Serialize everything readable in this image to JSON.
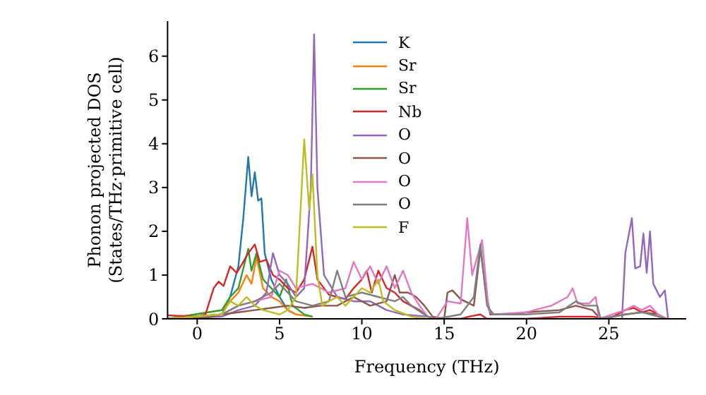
{
  "chart_data": {
    "type": "line",
    "xlabel": "Frequency (THz)",
    "ylabel": "Phonon projected DOS\n(States/THz·primitive cell)",
    "xlim": [
      -1.8,
      29.7
    ],
    "ylim": [
      0,
      6.8
    ],
    "xticks": [
      0,
      5,
      10,
      15,
      20,
      25
    ],
    "yticks": [
      0,
      1,
      2,
      3,
      4,
      5,
      6
    ],
    "grid": false,
    "legend": "top",
    "marker": "none",
    "line_style": "solid",
    "series": [
      {
        "name": "K",
        "color": "#1f77b4",
        "x": [
          -1.8,
          1.5,
          2,
          2.5,
          2.8,
          3.1,
          3.3,
          3.5,
          3.7,
          3.9,
          4.1,
          4.5,
          5,
          5.5,
          6
        ],
        "values": [
          0,
          0.1,
          0.5,
          1.2,
          2.3,
          3.7,
          2.8,
          3.35,
          2.7,
          2.75,
          1.5,
          0.9,
          0.5,
          0.2,
          0.1
        ]
      },
      {
        "name": "Sr",
        "color": "#ff7f0e",
        "x": [
          -1.8,
          1.5,
          2,
          2.5,
          3,
          3.3,
          3.6,
          4,
          4.5,
          5,
          5.5,
          6,
          7
        ],
        "values": [
          0,
          0.2,
          0.4,
          0.6,
          1.0,
          0.8,
          1.4,
          0.7,
          0.5,
          0.4,
          0.2,
          0.1,
          0.05
        ]
      },
      {
        "name": "Sr",
        "color": "#2ca02c",
        "x": [
          -1.8,
          1.5,
          2,
          2.5,
          3.1,
          3.3,
          3.6,
          4,
          4.5,
          5,
          5.4,
          5.8,
          6.5,
          7
        ],
        "values": [
          0,
          0.2,
          0.5,
          0.7,
          1.6,
          1.1,
          1.5,
          0.9,
          0.7,
          0.5,
          0.9,
          0.3,
          0.1,
          0.05
        ]
      },
      {
        "name": "Nb",
        "color": "#d62728",
        "x": [
          -1.8,
          0,
          0.5,
          1,
          1.3,
          1.6,
          2,
          2.4,
          2.8,
          3.1,
          3.5,
          3.8,
          4.2,
          4.6,
          5,
          5.5,
          6,
          6.5,
          7,
          7.3,
          8,
          8.5,
          9,
          9.5,
          10,
          10.3,
          10.6,
          11,
          11.5,
          12,
          12.5,
          13,
          13.5,
          14,
          14.5,
          16,
          16.5,
          17.2,
          17.6,
          20,
          22,
          24,
          25,
          26,
          26.5,
          27,
          27.5,
          28,
          28.5
        ],
        "values": [
          0.08,
          0.05,
          0.1,
          0.7,
          0.85,
          0.75,
          1.2,
          1.05,
          1.3,
          1.5,
          1.7,
          1.3,
          1.35,
          1.0,
          0.9,
          0.7,
          0.6,
          0.9,
          1.65,
          0.9,
          0.55,
          0.5,
          0.45,
          0.7,
          0.9,
          1.1,
          0.6,
          1.1,
          0.7,
          0.6,
          0.4,
          0.3,
          0.2,
          0.05,
          0,
          0,
          0.05,
          0.1,
          0,
          0,
          0.05,
          0.05,
          0,
          0.2,
          0.25,
          0.15,
          0.2,
          0.1,
          0
        ]
      },
      {
        "name": "O",
        "color": "#9467bd",
        "x": [
          -1.8,
          1.5,
          2.5,
          3.5,
          4.2,
          4.6,
          5,
          5.5,
          6,
          6.5,
          6.9,
          7.1,
          7.3,
          7.7,
          8.5,
          9.5,
          10.5,
          11.5,
          12.5,
          14,
          14.5,
          25.8,
          26,
          26.4,
          26.6,
          26.9,
          27.1,
          27.3,
          27.5,
          27.7,
          28.1,
          28.4,
          28.6
        ],
        "values": [
          0,
          0.05,
          0.2,
          0.3,
          0.6,
          1.5,
          1.0,
          0.8,
          0.5,
          0.7,
          3.0,
          6.5,
          3.0,
          1.0,
          0.5,
          0.4,
          0.4,
          0.2,
          0.1,
          0.05,
          0,
          0,
          1.5,
          2.3,
          1.15,
          1.2,
          1.95,
          1.05,
          2.0,
          0.8,
          0.5,
          0.65,
          0
        ]
      },
      {
        "name": "O",
        "color": "#8c564b",
        "x": [
          -1.8,
          0.5,
          1.5,
          2.5,
          3.5,
          4.5,
          5.5,
          6.5,
          7.5,
          8.5,
          9.5,
          10.5,
          11.5,
          12,
          12.3,
          12.8,
          13.3,
          13.8,
          14.3,
          15,
          15.2,
          15.5,
          16,
          16.8,
          17.2,
          17.5,
          17.8,
          19,
          20,
          22,
          23,
          24,
          24.5,
          26,
          27,
          28,
          28.5
        ],
        "values": [
          0,
          0.02,
          0.1,
          0.15,
          0.2,
          0.25,
          0.3,
          0.25,
          0.3,
          0.3,
          0.5,
          0.3,
          0.4,
          1.0,
          0.6,
          0.6,
          0.5,
          0.3,
          0.05,
          0,
          0.6,
          0.65,
          0.45,
          0.3,
          1.6,
          0.7,
          0.1,
          0.1,
          0.15,
          0.2,
          0.3,
          0.2,
          0,
          0.1,
          0.15,
          0.1,
          0
        ]
      },
      {
        "name": "O",
        "color": "#e377c2",
        "x": [
          -1.8,
          1.5,
          2.5,
          3.5,
          4.5,
          5,
          5.5,
          6,
          7,
          8,
          9,
          9.5,
          10,
          10.5,
          11,
          11.5,
          12,
          12.5,
          13,
          13.5,
          14,
          14.5,
          15.2,
          16,
          16.4,
          16.7,
          17.3,
          17.7,
          18,
          20,
          21.5,
          22.5,
          22.8,
          23.1,
          23.8,
          24.2,
          24.4,
          26,
          26.5,
          27,
          27.5,
          28,
          28.5
        ],
        "values": [
          0,
          0.1,
          0.3,
          0.4,
          0.5,
          1.1,
          1.0,
          0.7,
          0.8,
          0.6,
          0.7,
          1.3,
          0.9,
          1.2,
          0.8,
          1.2,
          0.7,
          1.1,
          0.6,
          0.3,
          0.05,
          0,
          0.4,
          0.35,
          2.3,
          1.0,
          1.8,
          0.2,
          0.1,
          0.15,
          0.3,
          0.5,
          0.7,
          0.35,
          0.35,
          0.5,
          0,
          0.2,
          0.3,
          0.2,
          0.3,
          0.1,
          0
        ]
      },
      {
        "name": "O",
        "color": "#7f7f7f",
        "x": [
          -1.8,
          1.5,
          2.5,
          3.5,
          4.5,
          5,
          6,
          7,
          8,
          8.5,
          9,
          10,
          11,
          12,
          12.5,
          13,
          14,
          14.5,
          16,
          16.8,
          17.2,
          17.6,
          18,
          20,
          22,
          23,
          23.5,
          24.3,
          24.5,
          26,
          27,
          28,
          28.5
        ],
        "values": [
          0,
          0.1,
          0.3,
          0.4,
          0.6,
          0.8,
          0.4,
          0.3,
          0.4,
          1.1,
          0.5,
          0.6,
          0.5,
          0.4,
          0.5,
          0.3,
          0.05,
          0,
          0.1,
          0.5,
          1.7,
          0.3,
          0.1,
          0.1,
          0.15,
          0.4,
          0.3,
          0.3,
          0,
          0.1,
          0.15,
          0.05,
          0
        ]
      },
      {
        "name": "F",
        "color": "#bcbd22",
        "x": [
          -1.8,
          1.5,
          2,
          2.5,
          3,
          3.5,
          4,
          4.5,
          5,
          5.5,
          6,
          6.5,
          6.8,
          7,
          7.3,
          7.6,
          8,
          8.5,
          9,
          10,
          10.5,
          11,
          11.3,
          12,
          13,
          14
        ],
        "values": [
          0,
          0.1,
          0.4,
          0.3,
          0.5,
          0.3,
          0.2,
          0.15,
          0.1,
          0.2,
          0.5,
          4.1,
          2.5,
          3.3,
          1.0,
          0.3,
          0.4,
          0.5,
          0.3,
          0.7,
          0.6,
          0.9,
          0.4,
          0.2,
          0.05,
          0
        ]
      }
    ]
  }
}
